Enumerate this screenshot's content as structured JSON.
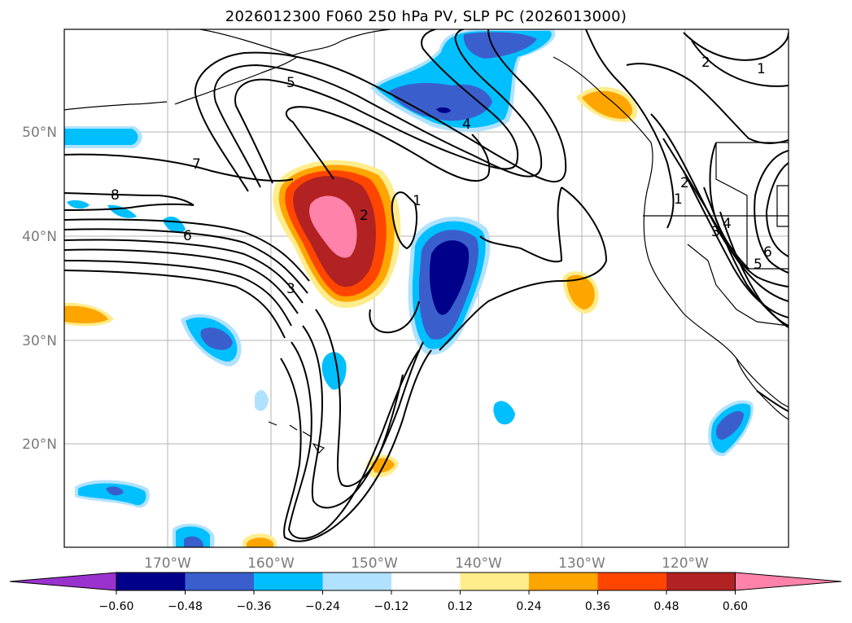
{
  "title": "2026012300 F060 250 hPa PV, SLP PC (2026013000)",
  "lon_labels": [
    "170°W",
    "160°W",
    "150°W",
    "140°W",
    "130°W",
    "120°W"
  ],
  "lat_labels": [
    "50°N",
    "40°N",
    "30°N",
    "20°N"
  ],
  "contour_labels": [
    "5",
    "4",
    "7",
    "8",
    "6",
    "3",
    "1",
    "2",
    "2",
    "1",
    "2",
    "3",
    "4",
    "5",
    "6",
    "1"
  ],
  "colorbar": {
    "ticks": [
      "−0.60",
      "−0.48",
      "−0.36",
      "−0.24",
      "−0.12",
      "0.12",
      "0.24",
      "0.36",
      "0.48",
      "0.60"
    ],
    "colors": [
      "#9a32cd",
      "#00008b",
      "#3a5fcd",
      "#00bfff",
      "#b0e2ff",
      "#ffffff",
      "#ffec8b",
      "#ffa500",
      "#ff4500",
      "#b22222",
      "#ff82ab"
    ]
  }
}
